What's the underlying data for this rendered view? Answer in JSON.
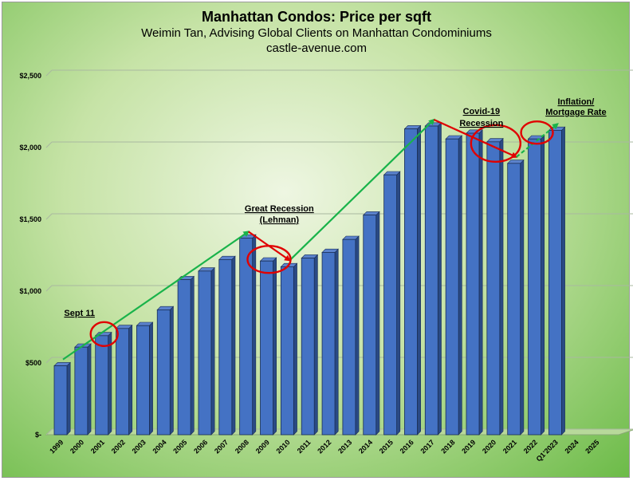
{
  "chart_data": {
    "type": "bar",
    "title": "Manhattan Condos: Price per sqft",
    "subtitle": "Weimin Tan, Advising Global Clients on Manhattan Condominiums",
    "source": "castle-avenue.com",
    "xlabel": "",
    "ylabel": "",
    "ylim": [
      0,
      2500
    ],
    "yticks": [
      0,
      500,
      1000,
      1500,
      2000,
      2500
    ],
    "ytick_labels": [
      "$-",
      "$500",
      "$1,000",
      "$1,500",
      "$2,000",
      "$2,500"
    ],
    "grid": true,
    "categories": [
      "1999",
      "2000",
      "2001",
      "2002",
      "2003",
      "2004",
      "2005",
      "2006",
      "2007",
      "2008",
      "2009",
      "2010",
      "2011",
      "2012",
      "2013",
      "2014",
      "2015",
      "2016",
      "2017",
      "2018",
      "2019",
      "2020",
      "2021",
      "2022",
      "Q1'2023",
      "2024",
      "2025"
    ],
    "values": [
      480,
      610,
      690,
      740,
      760,
      870,
      1080,
      1140,
      1220,
      1370,
      1210,
      1170,
      1230,
      1270,
      1360,
      1530,
      1810,
      2130,
      2150,
      2060,
      2100,
      2040,
      1890,
      2060,
      2120,
      null,
      null
    ],
    "bar_color": "#4472c4",
    "annotations": [
      {
        "text": "Sept 11",
        "x": "2001"
      },
      {
        "text": "Great Recession",
        "x": "2010"
      },
      {
        "text": "(Lehman)",
        "x": "2010"
      },
      {
        "text": "Covid-19",
        "x": "2020"
      },
      {
        "text": "Recession",
        "x": "2020"
      },
      {
        "text": "Inflation/",
        "x": "Q1'2023"
      },
      {
        "text": "Mortgage Rate",
        "x": "Q1'2023"
      }
    ],
    "trend_up_color": "#19b34a",
    "trend_down_color": "#e00000",
    "circle_color": "#e00000"
  }
}
